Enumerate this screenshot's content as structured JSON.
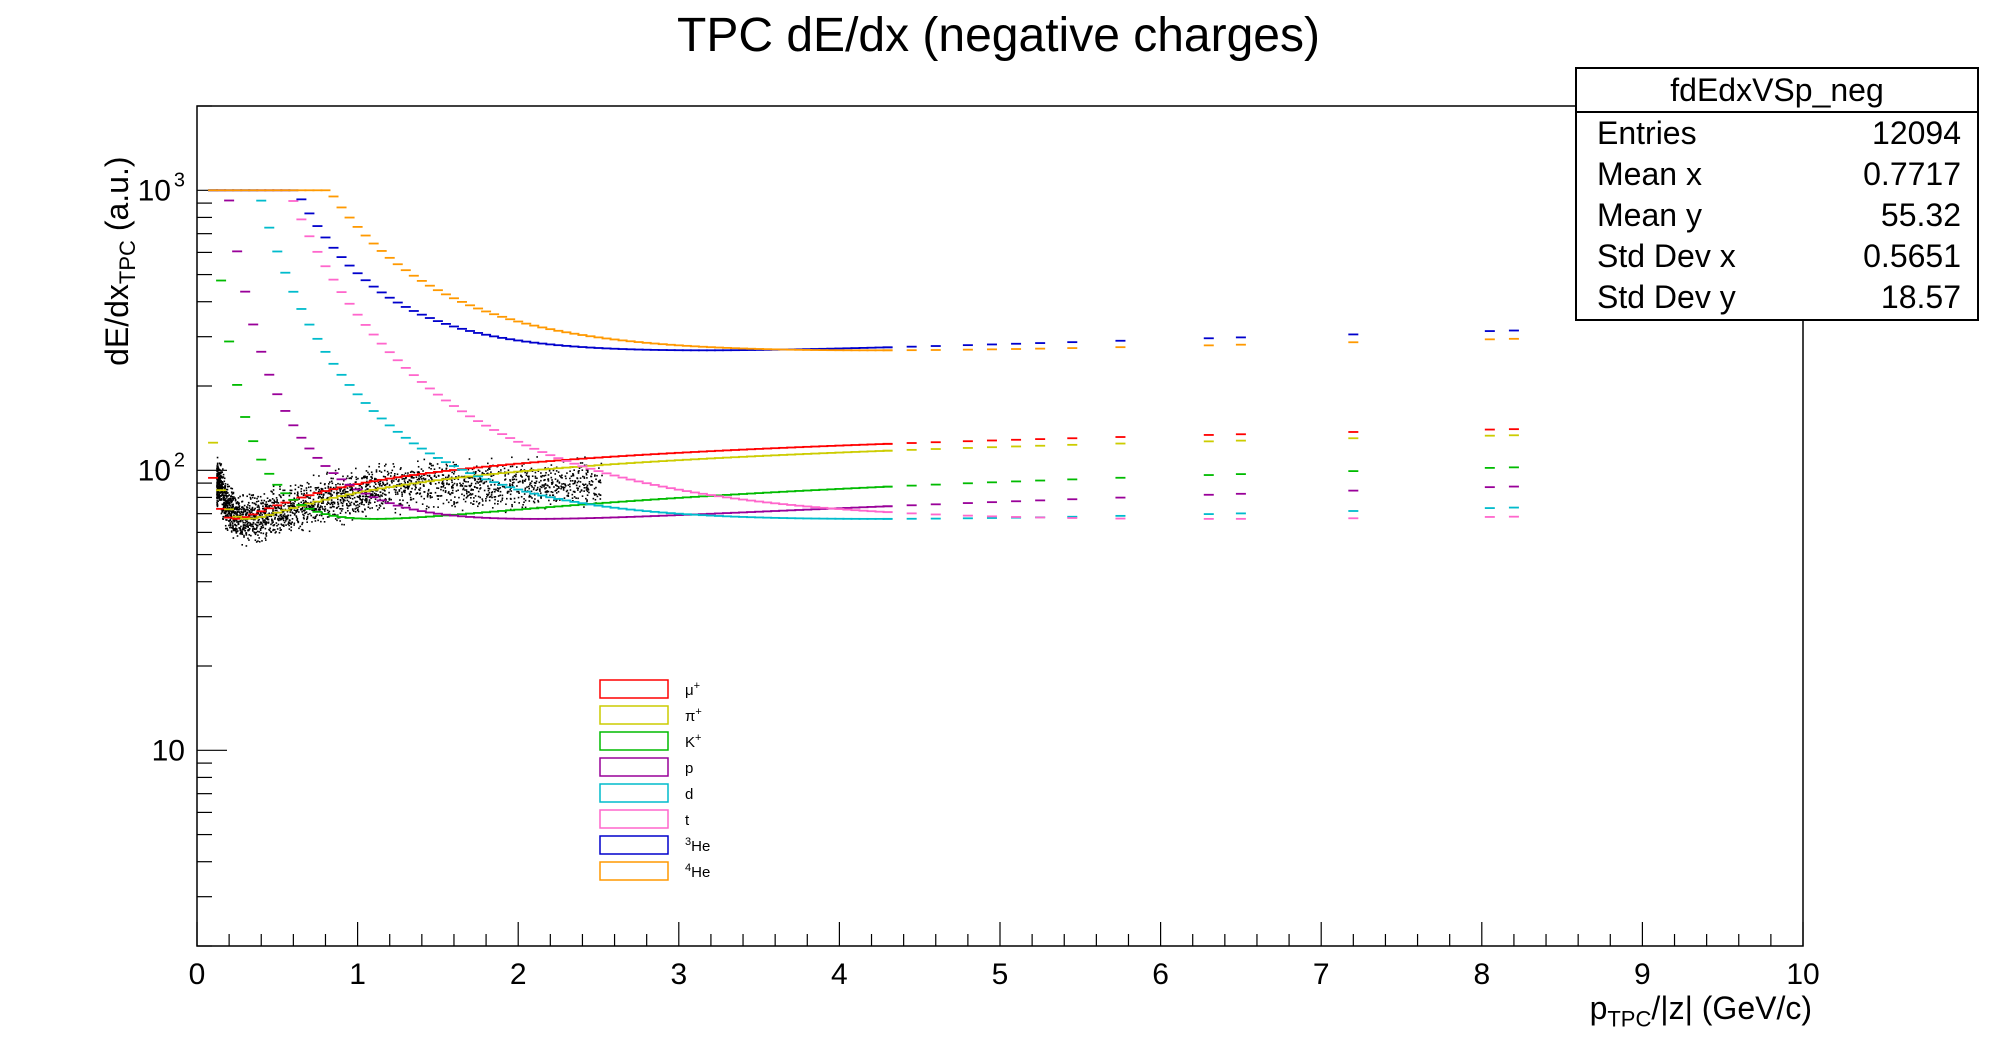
{
  "chart_data": {
    "type": "scatter",
    "title": "TPC dE/dx (negative charges)",
    "xlabel_main": "p",
    "xlabel_sub": "TPC",
    "xlabel_rest": "/|z| (GeV/c)",
    "ylabel_main": "dE/dx",
    "ylabel_sub": "TPC",
    "ylabel_rest": " (a.u.)",
    "xlim": [
      0,
      10
    ],
    "ylim": [
      2,
      2000
    ],
    "yscale": "log",
    "x_ticks": [
      "0",
      "1",
      "2",
      "3",
      "4",
      "5",
      "6",
      "7",
      "8",
      "9",
      "10"
    ],
    "y_ticks": [
      {
        "label": "10",
        "value": 10
      },
      {
        "label": "10",
        "sup": "2",
        "value": 100
      },
      {
        "label": "10",
        "sup": "3",
        "value": 1000
      }
    ],
    "stats": {
      "name": "fdEdxVSp_neg",
      "rows": [
        {
          "label": "Entries",
          "value": "12094"
        },
        {
          "label": "Mean x",
          "value": "0.7717"
        },
        {
          "label": "Mean y",
          "value": "55.32"
        },
        {
          "label": "Std Dev x",
          "value": "0.5651"
        },
        {
          "label": "Std Dev y",
          "value": "18.57"
        }
      ]
    },
    "legend_position": "lower-left",
    "series": [
      {
        "name": "μ",
        "sup": "+",
        "color": "#ff0000",
        "mass": 0.1057,
        "charge": 1
      },
      {
        "name": "π",
        "sup": "+",
        "color": "#cccc00",
        "mass": 0.1396,
        "charge": 1
      },
      {
        "name": "K",
        "sup": "+",
        "color": "#00bb00",
        "mass": 0.4937,
        "charge": 1
      },
      {
        "name": "p",
        "sup": "",
        "color": "#990099",
        "mass": 0.9383,
        "charge": 1
      },
      {
        "name": "d",
        "sup": "",
        "color": "#00bbcc",
        "mass": 1.8756,
        "charge": 1
      },
      {
        "name": "t",
        "sup": "",
        "color": "#ff66cc",
        "mass": 2.8089,
        "charge": 1
      },
      {
        "name": "He",
        "pre": "3",
        "sup": "",
        "color": "#0000cc",
        "mass": 2.8084,
        "charge": 2
      },
      {
        "name": "He",
        "pre": "4",
        "sup": "",
        "color": "#ff9900",
        "mass": 3.7274,
        "charge": 2
      }
    ],
    "series_bands": {
      "x_sparse": [
        4.3,
        4.45,
        4.6,
        4.8,
        4.95,
        5.1,
        5.25,
        5.45,
        5.75,
        6.3,
        6.5,
        7.2,
        8.05,
        8.2
      ],
      "x_max": 8.25
    }
  }
}
